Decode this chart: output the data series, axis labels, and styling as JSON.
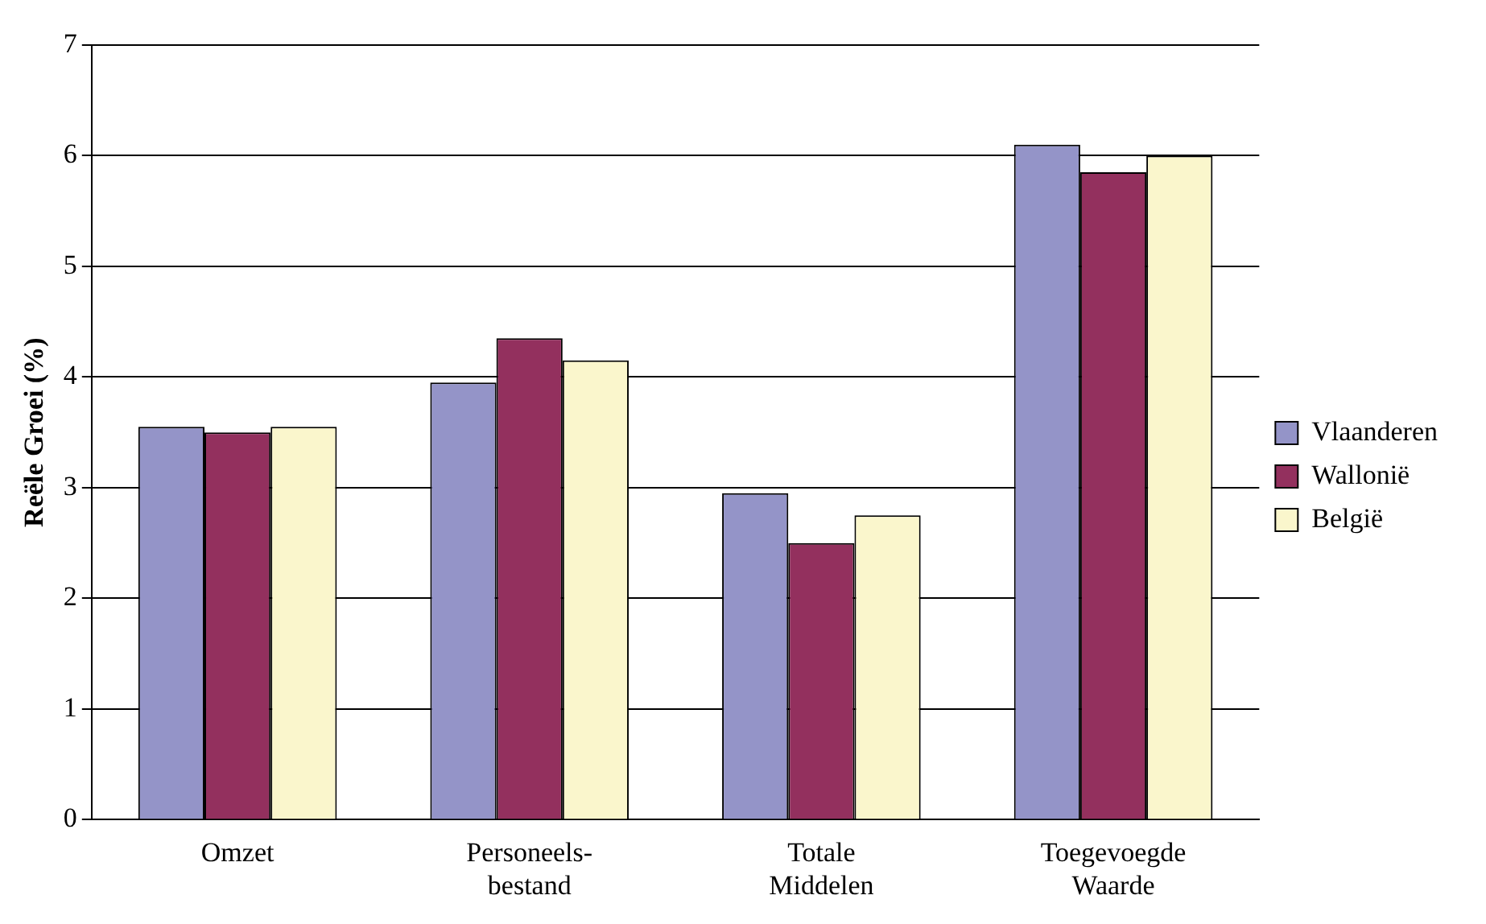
{
  "chart_data": {
    "type": "bar",
    "ylabel": "Reële Groei (%)",
    "categories": [
      [
        "Omzet"
      ],
      [
        "Personeels-",
        "bestand"
      ],
      [
        "Totale",
        "Middelen"
      ],
      [
        "Toegevoegde",
        "Waarde"
      ]
    ],
    "series": [
      {
        "name": "Vlaanderen",
        "color": "#9494c8",
        "values": [
          3.55,
          3.95,
          2.95,
          6.1
        ]
      },
      {
        "name": "Wallonië",
        "color": "#93305e",
        "values": [
          3.5,
          4.35,
          2.5,
          5.85
        ]
      },
      {
        "name": "België",
        "color": "#faf6cc",
        "values": [
          3.55,
          4.15,
          2.75,
          6.0
        ]
      }
    ],
    "ylim": [
      0,
      7
    ],
    "yticks": [
      0,
      1,
      2,
      3,
      4,
      5,
      6,
      7
    ],
    "grid": "y",
    "legend": "right"
  }
}
